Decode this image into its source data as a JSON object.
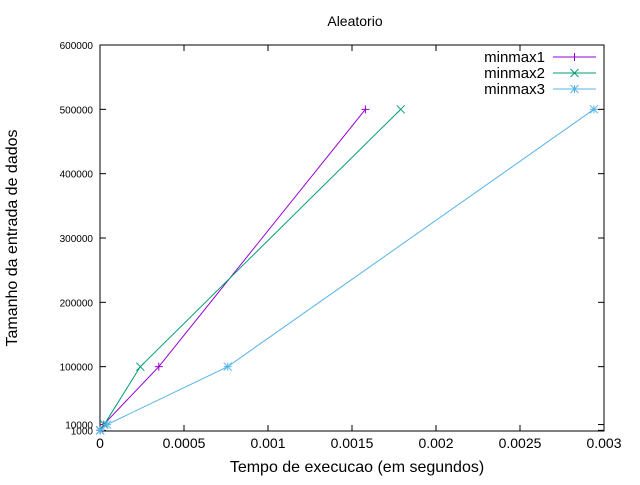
{
  "chart_data": {
    "type": "line",
    "title": "Aleatorio",
    "xlabel": "Tempo de execucao (em segundos)",
    "ylabel": "Tamanho da entrada de dados",
    "xlim": [
      0,
      0.003
    ],
    "ylim": [
      0,
      600000
    ],
    "x_ticks": [
      0,
      0.0005,
      0.001,
      0.0015,
      0.002,
      0.0025,
      0.003
    ],
    "x_tick_labels": [
      "0",
      "0.0005",
      "0.001",
      "0.0015",
      "0.002",
      "0.0025",
      "0.003"
    ],
    "y_ticks": [
      1000,
      10000,
      100000,
      200000,
      300000,
      400000,
      500000,
      600000
    ],
    "y_tick_labels": [
      "1000",
      "10000",
      "100000",
      "200000",
      "300000",
      "400000",
      "500000",
      "600000"
    ],
    "grid": false,
    "legend_position": "top-right",
    "series": [
      {
        "name": "minmax1",
        "color": "#9400d3",
        "marker": "plus",
        "points": [
          [
            1e-06,
            1000
          ],
          [
            2.2e-05,
            10000
          ],
          [
            0.00035,
            100000
          ],
          [
            0.00158,
            500000
          ]
        ]
      },
      {
        "name": "minmax2",
        "color": "#009e73",
        "marker": "cross",
        "points": [
          [
            1e-06,
            1000
          ],
          [
            2.5e-05,
            10000
          ],
          [
            0.00024,
            100000
          ],
          [
            0.00179,
            500000
          ]
        ]
      },
      {
        "name": "minmax3",
        "color": "#56b4e9",
        "marker": "star",
        "points": [
          [
            1e-06,
            1000
          ],
          [
            4.2e-05,
            10000
          ],
          [
            0.00076,
            100000
          ],
          [
            0.00294,
            500000
          ]
        ]
      }
    ]
  }
}
